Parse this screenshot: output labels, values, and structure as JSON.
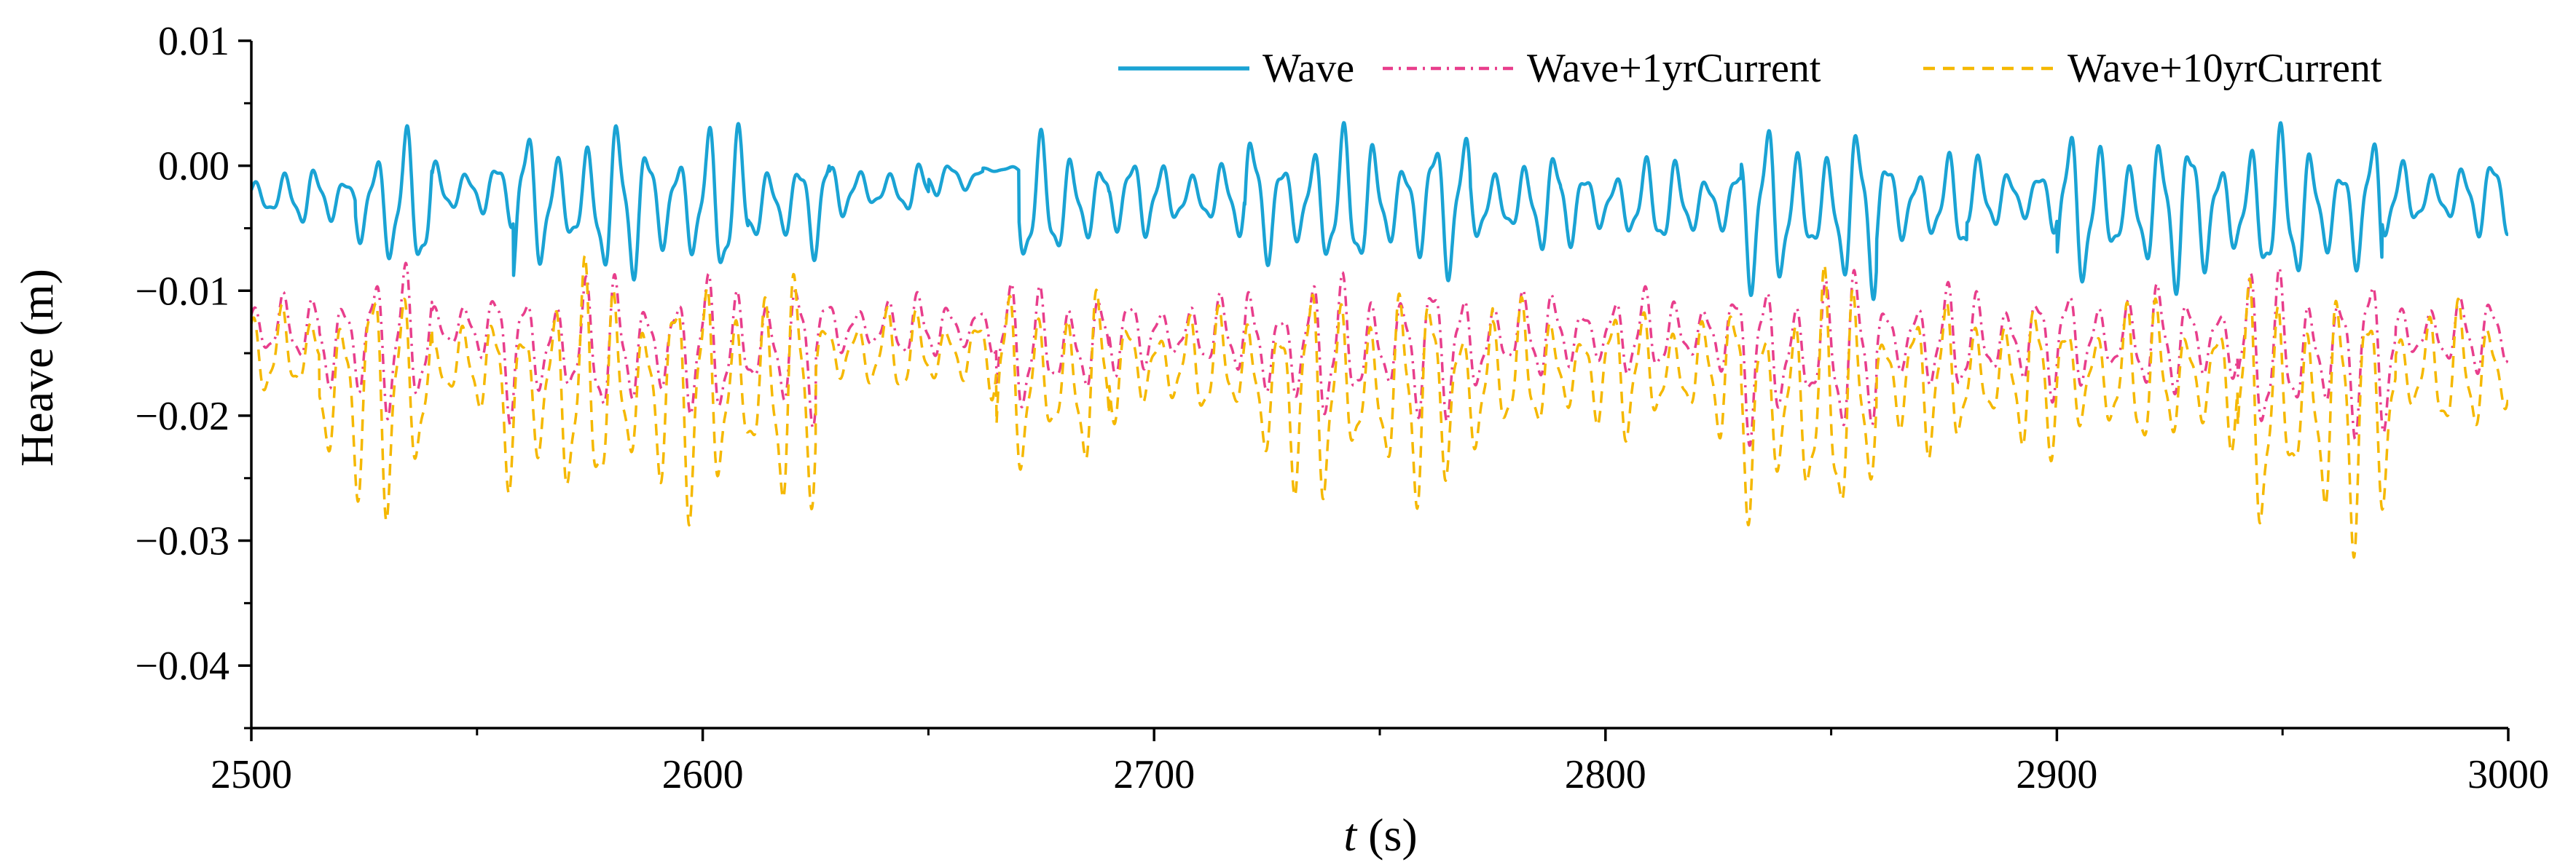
{
  "chart_data": {
    "type": "line",
    "xlabel_italic": "t",
    "xlabel_unit": " (s)",
    "ylabel": "Heave (m)",
    "xlim": [
      2500,
      3000
    ],
    "ylim": [
      -0.045,
      0.01
    ],
    "x_ticks": [
      2500,
      2600,
      2700,
      2800,
      2900,
      3000
    ],
    "x_tick_labels": [
      "2500",
      "2600",
      "2700",
      "2800",
      "2900",
      "3000"
    ],
    "y_ticks": [
      0.01,
      0.0,
      -0.01,
      -0.02,
      -0.03,
      -0.04
    ],
    "y_tick_labels": [
      "0.01",
      "0.00",
      "−0.01",
      "−0.02",
      "−0.03",
      "−0.04"
    ],
    "legend_position": "top-right",
    "series": [
      {
        "name": "Wave",
        "style": "solid",
        "color": "#1aa3d4",
        "segments": [
          {
            "t0": 2500,
            "t1": 2523,
            "mean": -0.0025,
            "amp": 0.0025
          },
          {
            "t0": 2523,
            "t1": 2540,
            "mean": -0.003,
            "amp": 0.0065
          },
          {
            "t0": 2540,
            "t1": 2558,
            "mean": -0.002,
            "amp": 0.003
          },
          {
            "t0": 2558,
            "t1": 2610,
            "mean": -0.003,
            "amp": 0.007
          },
          {
            "t0": 2610,
            "t1": 2628,
            "mean": -0.003,
            "amp": 0.005
          },
          {
            "t0": 2628,
            "t1": 2650,
            "mean": -0.002,
            "amp": 0.0025
          },
          {
            "t0": 2650,
            "t1": 2662,
            "mean": -0.001,
            "amp": 0.0015
          },
          {
            "t0": 2662,
            "t1": 2670,
            "mean": -0.0003,
            "amp": 0.0003
          },
          {
            "t0": 2670,
            "t1": 2690,
            "mean": -0.003,
            "amp": 0.006
          },
          {
            "t0": 2690,
            "t1": 2720,
            "mean": -0.0025,
            "amp": 0.0035
          },
          {
            "t0": 2720,
            "t1": 2770,
            "mean": -0.003,
            "amp": 0.0065
          },
          {
            "t0": 2770,
            "t1": 2790,
            "mean": -0.003,
            "amp": 0.0045
          },
          {
            "t0": 2790,
            "t1": 2830,
            "mean": -0.003,
            "amp": 0.004
          },
          {
            "t0": 2830,
            "t1": 2860,
            "mean": -0.0035,
            "amp": 0.0075
          },
          {
            "t0": 2860,
            "t1": 2880,
            "mean": -0.003,
            "amp": 0.005
          },
          {
            "t0": 2880,
            "t1": 2900,
            "mean": -0.0025,
            "amp": 0.0035
          },
          {
            "t0": 2900,
            "t1": 2972,
            "mean": -0.0035,
            "amp": 0.007
          },
          {
            "t0": 2972,
            "t1": 3000,
            "mean": -0.0025,
            "amp": 0.0035
          }
        ]
      },
      {
        "name": "Wave+1yrCurrent",
        "style": "dashdot",
        "color": "#e83e8c",
        "segments": [
          {
            "t0": 2500,
            "t1": 2515,
            "mean": -0.013,
            "amp": 0.003
          },
          {
            "t0": 2515,
            "t1": 2540,
            "mean": -0.014,
            "amp": 0.007
          },
          {
            "t0": 2540,
            "t1": 2555,
            "mean": -0.013,
            "amp": 0.003
          },
          {
            "t0": 2555,
            "t1": 2625,
            "mean": -0.0145,
            "amp": 0.0065
          },
          {
            "t0": 2625,
            "t1": 2665,
            "mean": -0.013,
            "amp": 0.003
          },
          {
            "t0": 2665,
            "t1": 2690,
            "mean": -0.0145,
            "amp": 0.006
          },
          {
            "t0": 2690,
            "t1": 2720,
            "mean": -0.0135,
            "amp": 0.0035
          },
          {
            "t0": 2720,
            "t1": 2775,
            "mean": -0.0145,
            "amp": 0.0065
          },
          {
            "t0": 2775,
            "t1": 2830,
            "mean": -0.0135,
            "amp": 0.004
          },
          {
            "t0": 2830,
            "t1": 2860,
            "mean": -0.015,
            "amp": 0.0075
          },
          {
            "t0": 2860,
            "t1": 2940,
            "mean": -0.014,
            "amp": 0.005
          },
          {
            "t0": 2940,
            "t1": 2975,
            "mean": -0.015,
            "amp": 0.0075
          },
          {
            "t0": 2975,
            "t1": 3000,
            "mean": -0.0135,
            "amp": 0.0035
          }
        ]
      },
      {
        "name": "Wave+10yrCurrent",
        "style": "dashed",
        "color": "#f5b800",
        "segments": [
          {
            "t0": 2500,
            "t1": 2515,
            "mean": -0.015,
            "amp": 0.004
          },
          {
            "t0": 2515,
            "t1": 2540,
            "mean": -0.018,
            "amp": 0.011
          },
          {
            "t0": 2540,
            "t1": 2555,
            "mean": -0.016,
            "amp": 0.004
          },
          {
            "t0": 2555,
            "t1": 2625,
            "mean": -0.018,
            "amp": 0.011
          },
          {
            "t0": 2625,
            "t1": 2665,
            "mean": -0.015,
            "amp": 0.004
          },
          {
            "t0": 2665,
            "t1": 2690,
            "mean": -0.0175,
            "amp": 0.009
          },
          {
            "t0": 2690,
            "t1": 2720,
            "mean": -0.016,
            "amp": 0.005
          },
          {
            "t0": 2720,
            "t1": 2775,
            "mean": -0.018,
            "amp": 0.01
          },
          {
            "t0": 2775,
            "t1": 2830,
            "mean": -0.0165,
            "amp": 0.006
          },
          {
            "t0": 2830,
            "t1": 2860,
            "mean": -0.019,
            "amp": 0.0115
          },
          {
            "t0": 2860,
            "t1": 2940,
            "mean": -0.017,
            "amp": 0.007
          },
          {
            "t0": 2940,
            "t1": 2975,
            "mean": -0.0195,
            "amp": 0.012
          },
          {
            "t0": 2975,
            "t1": 3000,
            "mean": -0.0165,
            "amp": 0.006
          }
        ]
      }
    ]
  }
}
